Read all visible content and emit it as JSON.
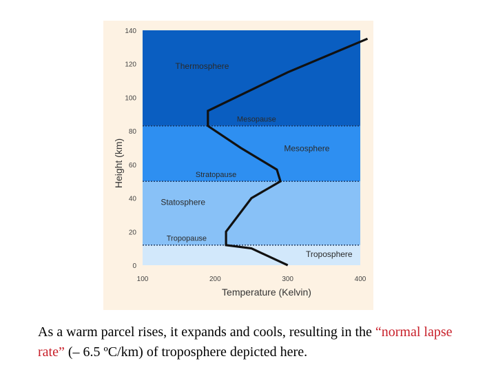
{
  "chart_data": {
    "type": "line",
    "xlabel": "Temperature (Kelvin)",
    "ylabel": "Height (km)",
    "xlim": [
      100,
      400
    ],
    "ylim": [
      0,
      140
    ],
    "x_ticks": [
      100,
      200,
      300,
      400
    ],
    "y_ticks": [
      0,
      20,
      40,
      60,
      80,
      100,
      120,
      140
    ],
    "grid": false,
    "series": [
      {
        "x": [
          300,
          250,
          215,
          215,
          250,
          290,
          285,
          235,
          190,
          190,
          300,
          410
        ],
        "y": [
          0,
          10,
          12,
          20,
          40,
          50,
          57,
          70,
          83,
          92,
          115,
          135
        ]
      }
    ],
    "layers": [
      {
        "label": "Troposphere",
        "from": 0,
        "to": 12,
        "color": "#d2e8fb",
        "label_x": 325,
        "label_y": 5
      },
      {
        "label": "Statosphere",
        "from": 12,
        "to": 50,
        "color": "#88c1f7",
        "label_x": 125,
        "label_y": 36
      },
      {
        "label": "Mesosphere",
        "from": 50,
        "to": 83,
        "color": "#2e8ff1",
        "label_x": 295,
        "label_y": 68
      },
      {
        "label": "Thermosphere",
        "from": 83,
        "to": 140,
        "color": "#0a5ec1",
        "label_x": 145,
        "label_y": 117
      }
    ],
    "boundaries": [
      {
        "label": "Tropopause",
        "y": 12,
        "label_x": 133,
        "label_y": 14.5
      },
      {
        "label": "Stratopause",
        "y": 50,
        "label_x": 173,
        "label_y": 52.5
      },
      {
        "label": "Mesopause",
        "y": 83,
        "label_x": 230,
        "label_y": 85.5
      }
    ],
    "background": "#fdf2e3",
    "line_color": "#111111"
  },
  "caption": {
    "part1": "As a warm parcel rises, it expands and cools, resulting in the ",
    "highlight": "“normal lapse rate”",
    "part2": " (– 6.5 ºC/km) of troposphere depicted here."
  }
}
